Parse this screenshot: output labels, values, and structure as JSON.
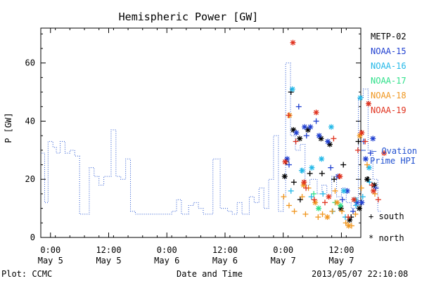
{
  "chart_data": {
    "type": "scatter",
    "title": "Hemispheric Power [GW]",
    "ylabel": "P [GW]",
    "xlabel": "Date and Time",
    "ylim": [
      0,
      72
    ],
    "yticks": [
      0,
      20,
      40,
      60
    ],
    "xlim_hours": [
      -2,
      64
    ],
    "xticks": [
      {
        "h": 0,
        "top": "0:00",
        "bottom": "May 5"
      },
      {
        "h": 12,
        "top": "12:00",
        "bottom": "May 5"
      },
      {
        "h": 24,
        "top": "0:00",
        "bottom": "May 6"
      },
      {
        "h": 36,
        "top": "12:00",
        "bottom": "May 6"
      },
      {
        "h": 48,
        "top": "0:00",
        "bottom": "May 7"
      },
      {
        "h": 60,
        "top": "12:00",
        "bottom": "May 7"
      }
    ],
    "footer_left": "Plot: CCMC",
    "footer_right": "2013/05/07 22:10:08",
    "legend": [
      {
        "name": "METP-02",
        "color": "#000000"
      },
      {
        "name": "NOAA-15",
        "color": "#1f3fd0"
      },
      {
        "name": "NOAA-16",
        "color": "#22b8e8"
      },
      {
        "name": "NOAA-17",
        "color": "#2ee08a"
      },
      {
        "name": "NOAA-18",
        "color": "#f0961e"
      },
      {
        "name": "NOAA-19",
        "color": "#e0321e"
      }
    ],
    "ovation_label_1": "— Ovation",
    "ovation_label_2": "Prime HPI",
    "ovation_color": "#2050d0",
    "ovation_value": 30,
    "marker_south_label": "+ south",
    "marker_north_label": "* north",
    "ovation_series": [
      [
        -1.8,
        29
      ],
      [
        -1.2,
        12
      ],
      [
        -0.5,
        33
      ],
      [
        0.5,
        31
      ],
      [
        1.2,
        29
      ],
      [
        2,
        33
      ],
      [
        3,
        29
      ],
      [
        4,
        30
      ],
      [
        5,
        28
      ],
      [
        6,
        8
      ],
      [
        8,
        24
      ],
      [
        9,
        21
      ],
      [
        10,
        18
      ],
      [
        11,
        21
      ],
      [
        12.5,
        37
      ],
      [
        13.5,
        21
      ],
      [
        14.5,
        20
      ],
      [
        15.5,
        27
      ],
      [
        16.5,
        9
      ],
      [
        17.5,
        8
      ],
      [
        19,
        8
      ],
      [
        21,
        8
      ],
      [
        23,
        8
      ],
      [
        25,
        9
      ],
      [
        26,
        13
      ],
      [
        27,
        8
      ],
      [
        28.5,
        11
      ],
      [
        29.5,
        12
      ],
      [
        30.5,
        10
      ],
      [
        31.5,
        8
      ],
      [
        33.5,
        27
      ],
      [
        35,
        10
      ],
      [
        36.5,
        9
      ],
      [
        37.5,
        8
      ],
      [
        38.5,
        12
      ],
      [
        39.5,
        8
      ],
      [
        41,
        14
      ],
      [
        42,
        12
      ],
      [
        43,
        17
      ],
      [
        44,
        10
      ],
      [
        45,
        20
      ],
      [
        46,
        35
      ],
      [
        47,
        9
      ],
      [
        48,
        14
      ],
      [
        48.5,
        60
      ],
      [
        49.5,
        35
      ],
      [
        50.5,
        30
      ],
      [
        51.5,
        32
      ],
      [
        52.5,
        18
      ],
      [
        53.5,
        20
      ],
      [
        55,
        15
      ],
      [
        56,
        18
      ],
      [
        57,
        14
      ],
      [
        58,
        21
      ],
      [
        59,
        14
      ],
      [
        60,
        17
      ],
      [
        61,
        12
      ],
      [
        62,
        10
      ],
      [
        63,
        13
      ],
      [
        63.5,
        48
      ],
      [
        64.5,
        51
      ],
      [
        65.5,
        30
      ],
      [
        66.5,
        20
      ],
      [
        67.5,
        9
      ]
    ],
    "satellite_points": [
      {
        "sat": "METP-02",
        "marker": "+",
        "points": [
          [
            48.6,
            26
          ],
          [
            49.6,
            50
          ],
          [
            50.2,
            19
          ],
          [
            51.5,
            13
          ],
          [
            53.5,
            22
          ],
          [
            56,
            22
          ],
          [
            58.5,
            20
          ],
          [
            60.4,
            25
          ],
          [
            62,
            7
          ],
          [
            63.5,
            33
          ],
          [
            65.5,
            20
          ]
        ]
      },
      {
        "sat": "METP-02",
        "marker": "*",
        "points": [
          [
            48.3,
            21
          ],
          [
            50.1,
            37
          ],
          [
            51.4,
            34
          ],
          [
            53.1,
            37
          ],
          [
            55.8,
            34
          ],
          [
            57.6,
            32
          ],
          [
            59.9,
            10
          ],
          [
            61.7,
            6
          ],
          [
            63.7,
            10
          ],
          [
            65.3,
            20
          ],
          [
            66.8,
            18
          ]
        ]
      },
      {
        "sat": "NOAA-15",
        "marker": "+",
        "points": [
          [
            49.2,
            25
          ],
          [
            51.2,
            45
          ],
          [
            52.8,
            35
          ],
          [
            54.8,
            40
          ],
          [
            57.8,
            24
          ],
          [
            60.2,
            13
          ],
          [
            62.4,
            9
          ],
          [
            64.6,
            33
          ],
          [
            66,
            29
          ],
          [
            67.1,
            17
          ]
        ]
      },
      {
        "sat": "NOAA-15",
        "marker": "*",
        "points": [
          [
            48.8,
            27
          ],
          [
            50.7,
            36
          ],
          [
            52.4,
            38
          ],
          [
            53.6,
            38
          ],
          [
            55.4,
            35
          ],
          [
            57.2,
            33
          ],
          [
            59.3,
            21
          ],
          [
            61.2,
            16
          ],
          [
            63.2,
            12
          ],
          [
            64.2,
            12
          ],
          [
            65,
            27
          ],
          [
            66.5,
            34
          ]
        ]
      },
      {
        "sat": "NOAA-16",
        "marker": "+",
        "points": [
          [
            49.6,
            16
          ],
          [
            51.8,
            23
          ],
          [
            53.8,
            14
          ],
          [
            56.2,
            15
          ],
          [
            58.2,
            9
          ],
          [
            60.8,
            7
          ],
          [
            63,
            11
          ],
          [
            64.4,
            14
          ],
          [
            65.8,
            19
          ]
        ]
      },
      {
        "sat": "NOAA-16",
        "marker": "*",
        "points": [
          [
            49.9,
            51
          ],
          [
            51.9,
            23
          ],
          [
            53.9,
            24
          ],
          [
            55.9,
            27
          ],
          [
            57.9,
            38
          ],
          [
            60.5,
            16
          ],
          [
            62.9,
            13
          ],
          [
            63.9,
            48
          ],
          [
            65.7,
            24
          ]
        ]
      },
      {
        "sat": "NOAA-17",
        "marker": "+",
        "points": [
          [
            54.3,
            15
          ],
          [
            58.7,
            12
          ]
        ]
      },
      {
        "sat": "NOAA-17",
        "marker": "*",
        "points": [
          [
            55.3,
            10
          ],
          [
            59.8,
            11
          ]
        ]
      },
      {
        "sat": "NOAA-18",
        "marker": "+",
        "points": [
          [
            48.1,
            14
          ],
          [
            49.2,
            11
          ],
          [
            50.3,
            9
          ],
          [
            51.9,
            14
          ],
          [
            52.6,
            8
          ],
          [
            53.2,
            17
          ],
          [
            55.2,
            7
          ],
          [
            56.1,
            8
          ],
          [
            58.1,
            9
          ],
          [
            58.7,
            16
          ],
          [
            60.1,
            9
          ],
          [
            60.9,
            5
          ],
          [
            62.1,
            4
          ],
          [
            62.9,
            8
          ],
          [
            64.1,
            17
          ],
          [
            65.3,
            25
          ],
          [
            66.9,
            15
          ]
        ]
      },
      {
        "sat": "NOAA-18",
        "marker": "*",
        "points": [
          [
            49.3,
            42
          ],
          [
            52.2,
            18
          ],
          [
            54.6,
            12
          ],
          [
            57.1,
            7
          ],
          [
            59.1,
            12
          ],
          [
            61.5,
            4
          ],
          [
            63.8,
            35
          ]
        ]
      },
      {
        "sat": "NOAA-19",
        "marker": "+",
        "points": [
          [
            49.1,
            42
          ],
          [
            50.6,
            33
          ],
          [
            52.7,
            17
          ],
          [
            54.4,
            13
          ],
          [
            56.6,
            12
          ],
          [
            58.4,
            34
          ],
          [
            59.6,
            21
          ],
          [
            61.4,
            7
          ],
          [
            63.4,
            30
          ],
          [
            64.9,
            33
          ],
          [
            66.3,
            18
          ],
          [
            67.6,
            13
          ]
        ]
      },
      {
        "sat": "NOAA-19",
        "marker": "*",
        "points": [
          [
            48.4,
            26
          ],
          [
            50,
            67
          ],
          [
            52.3,
            19
          ],
          [
            54.8,
            43
          ],
          [
            57.4,
            14
          ],
          [
            59.7,
            21
          ],
          [
            62.6,
            13
          ],
          [
            64.2,
            36
          ],
          [
            65.6,
            46
          ],
          [
            66.6,
            16
          ],
          [
            68.8,
            29
          ]
        ]
      }
    ]
  }
}
